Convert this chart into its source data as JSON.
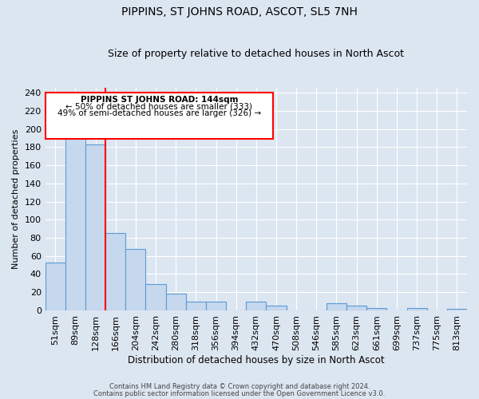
{
  "title": "PIPPINS, ST JOHNS ROAD, ASCOT, SL5 7NH",
  "subtitle": "Size of property relative to detached houses in North Ascot",
  "xlabel": "Distribution of detached houses by size in North Ascot",
  "ylabel": "Number of detached properties",
  "bar_labels": [
    "51sqm",
    "89sqm",
    "128sqm",
    "166sqm",
    "204sqm",
    "242sqm",
    "280sqm",
    "318sqm",
    "356sqm",
    "394sqm",
    "432sqm",
    "470sqm",
    "508sqm",
    "546sqm",
    "585sqm",
    "623sqm",
    "661sqm",
    "699sqm",
    "737sqm",
    "775sqm",
    "813sqm"
  ],
  "bar_values": [
    53,
    191,
    183,
    85,
    68,
    29,
    18,
    10,
    10,
    0,
    10,
    5,
    0,
    0,
    8,
    5,
    3,
    0,
    3,
    0,
    2
  ],
  "bar_color": "#c5d8ed",
  "bar_edge_color": "#5b9bd5",
  "bg_color": "#dce6f1",
  "plot_bg_color": "#dce6f1",
  "grid_color": "#ffffff",
  "red_line_x": 2.5,
  "ylim": [
    0,
    245
  ],
  "yticks": [
    0,
    20,
    40,
    60,
    80,
    100,
    120,
    140,
    160,
    180,
    200,
    220,
    240
  ],
  "annotation_title": "PIPPINS ST JOHNS ROAD: 144sqm",
  "annotation_line1": "← 50% of detached houses are smaller (333)",
  "annotation_line2": "49% of semi-detached houses are larger (326) →",
  "footer1": "Contains HM Land Registry data © Crown copyright and database right 2024.",
  "footer2": "Contains public sector information licensed under the Open Government Licence v3.0."
}
